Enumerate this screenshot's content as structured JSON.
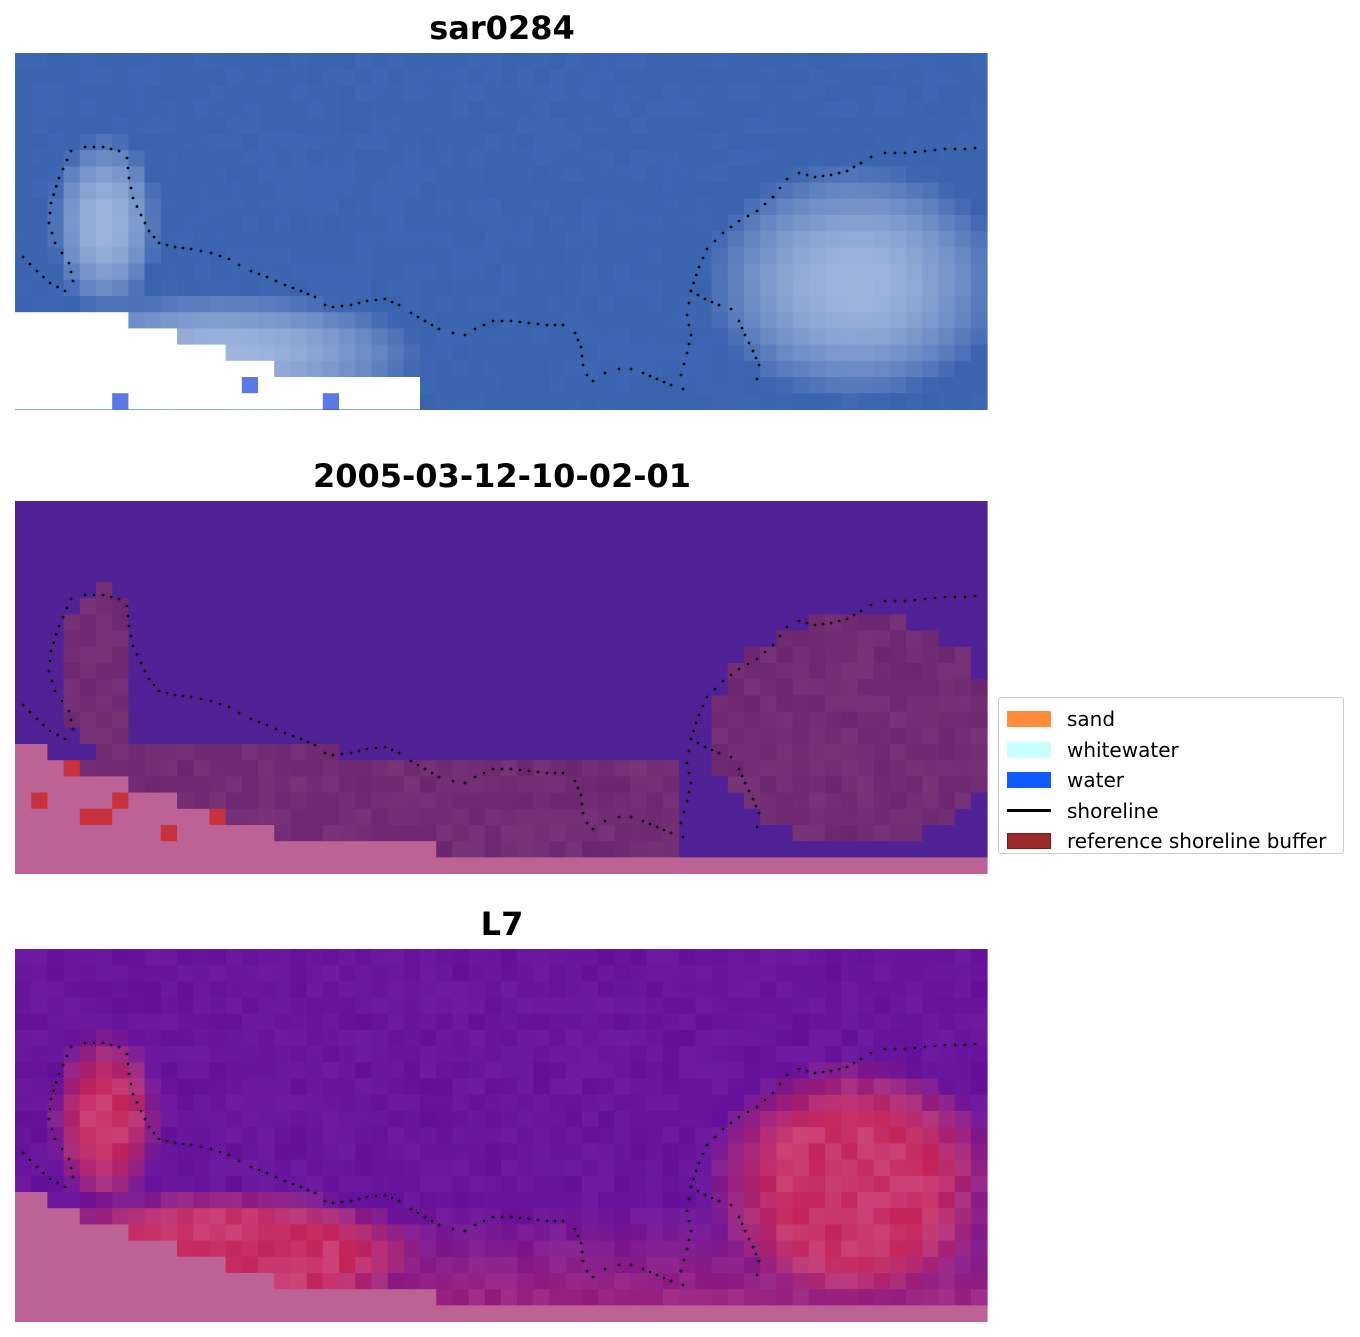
{
  "panels": [
    {
      "title": "sar0284"
    },
    {
      "title": "2005-03-12-10-02-01"
    },
    {
      "title": "L7"
    }
  ],
  "legend": {
    "items": [
      {
        "label": "sand",
        "color": "#ff8c3b",
        "kind": "patch"
      },
      {
        "label": "whitewater",
        "color": "#c8ffff",
        "kind": "patch"
      },
      {
        "label": "water",
        "color": "#0f5bff",
        "kind": "patch"
      },
      {
        "label": "shoreline",
        "color": "#000000",
        "kind": "line"
      },
      {
        "label": "reference shoreline buffer",
        "color": "#9b2a2a",
        "kind": "patch",
        "edge": "#7a1c1c"
      }
    ]
  },
  "colors": {
    "rgb_water": "#3a63ad",
    "class_water": "#512295",
    "class_land": "#bd6294",
    "class_buffer": "#6c2670",
    "mndwi_low": "#640f9a",
    "mndwi_high": "#c3245a"
  }
}
